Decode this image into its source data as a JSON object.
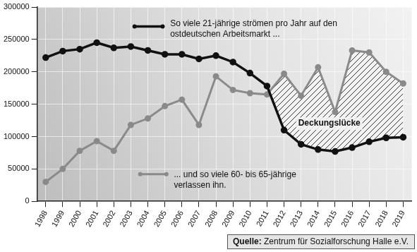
{
  "chart_data": {
    "type": "line",
    "categories": [
      "1998",
      "1999",
      "2000",
      "2001",
      "2002",
      "2003",
      "2004",
      "2005",
      "2006",
      "2007",
      "2008",
      "2009",
      "2010",
      "2011",
      "2012",
      "2013",
      "2014",
      "2015",
      "2016",
      "2017",
      "2018",
      "2019"
    ],
    "series": [
      {
        "name": "So viele 21-jährige strömen pro Jahr auf den ostdeutschen Arbeitsmarkt ...",
        "color": "#111111",
        "marker": "circle",
        "line_style": "solid",
        "values": [
          222000,
          232000,
          235000,
          245000,
          237000,
          239000,
          233000,
          227000,
          227000,
          220000,
          225000,
          215000,
          198000,
          178000,
          110000,
          88000,
          80000,
          77000,
          83000,
          92000,
          98000,
          99000
        ]
      },
      {
        "name": "... und so viele 60- bis 65-jährige verlassen ihn.",
        "color": "#8a8a8a",
        "marker": "circle",
        "line_style": "solid",
        "values": [
          30000,
          50000,
          78000,
          93000,
          78000,
          118000,
          128000,
          147000,
          157000,
          118000,
          193000,
          172000,
          167000,
          165000,
          197000,
          163000,
          207000,
          138000,
          233000,
          230000,
          200000,
          182000
        ]
      }
    ],
    "ylim": [
      0,
      300000
    ],
    "yticks": [
      0,
      50000,
      100000,
      150000,
      200000,
      250000,
      300000
    ],
    "grid": true,
    "annotations": [
      "Deckungslücke",
      "Quelle: Zentrum für Sozialforschung Halle e.V."
    ]
  }
}
